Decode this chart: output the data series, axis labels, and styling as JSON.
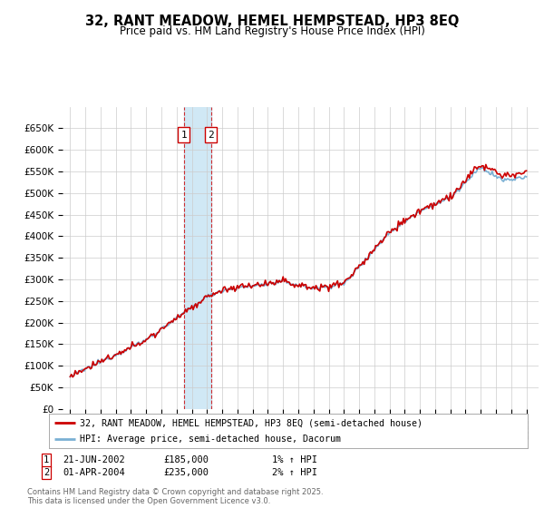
{
  "title": "32, RANT MEADOW, HEMEL HEMPSTEAD, HP3 8EQ",
  "subtitle": "Price paid vs. HM Land Registry's House Price Index (HPI)",
  "legend_line1": "32, RANT MEADOW, HEMEL HEMPSTEAD, HP3 8EQ (semi-detached house)",
  "legend_line2": "HPI: Average price, semi-detached house, Dacorum",
  "sale1_date": "21-JUN-2002",
  "sale1_price": 185000,
  "sale1_label": "1",
  "sale1_hpi_txt": "1% ↑ HPI",
  "sale1_year": 2002.47,
  "sale2_date": "01-APR-2004",
  "sale2_price": 235000,
  "sale2_label": "2",
  "sale2_hpi_txt": "2% ↑ HPI",
  "sale2_year": 2004.25,
  "ylim": [
    0,
    700000
  ],
  "yticks": [
    0,
    50000,
    100000,
    150000,
    200000,
    250000,
    300000,
    350000,
    400000,
    450000,
    500000,
    550000,
    600000,
    650000
  ],
  "xlim_start": 1994.5,
  "xlim_end": 2025.8,
  "price_color": "#cc0000",
  "hpi_color": "#7ab0d4",
  "span_color": "#d0e8f5",
  "footer": "Contains HM Land Registry data © Crown copyright and database right 2025.\nThis data is licensed under the Open Government Licence v3.0.",
  "background_color": "#ffffff",
  "grid_color": "#cccccc"
}
